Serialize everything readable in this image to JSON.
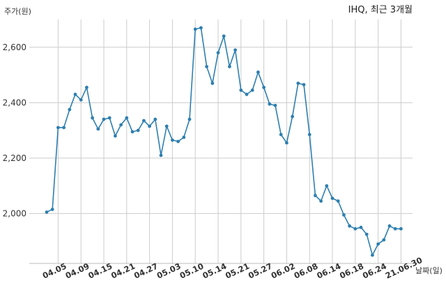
{
  "chart_data": {
    "type": "line",
    "title": "IHQ, 최근 3개월",
    "xlabel": "날짜(일)",
    "ylabel": "주가(원)",
    "ylim": [
      1820,
      2700
    ],
    "yticks": [
      2000,
      2200,
      2400,
      2600
    ],
    "ytick_labels": [
      "2,000",
      "2,200",
      "2,400",
      "2,600"
    ],
    "xlabels": [
      "04.05",
      "04.09",
      "04.15",
      "04.21",
      "04.27",
      "05.03",
      "05.10",
      "05.14",
      "05.21",
      "05.27",
      "06.02",
      "06.08",
      "06.14",
      "06.18",
      "06.24",
      "21.06.30"
    ],
    "xlabel_indices": [
      2,
      6,
      10,
      14,
      18,
      22,
      26,
      30,
      34,
      38,
      42,
      46,
      50,
      54,
      58,
      62
    ],
    "grid": true,
    "color": "#2e7fb0",
    "series": [
      {
        "values": [
          2005,
          2015,
          2310,
          2310,
          2375,
          2430,
          2410,
          2455,
          2345,
          2305,
          2340,
          2345,
          2280,
          2320,
          2345,
          2295,
          2300,
          2335,
          2315,
          2340,
          2210,
          2315,
          2265,
          2260,
          2275,
          2340,
          2665,
          2670,
          2530,
          2470,
          2580,
          2640,
          2530,
          2590,
          2445,
          2430,
          2445,
          2510,
          2455,
          2395,
          2390,
          2285,
          2255,
          2350,
          2470,
          2465,
          2285,
          2065,
          2045,
          2100,
          2055,
          2045,
          1995,
          1955,
          1945,
          1950,
          1925,
          1850,
          1890,
          1905,
          1955,
          1945,
          1945
        ]
      }
    ]
  }
}
